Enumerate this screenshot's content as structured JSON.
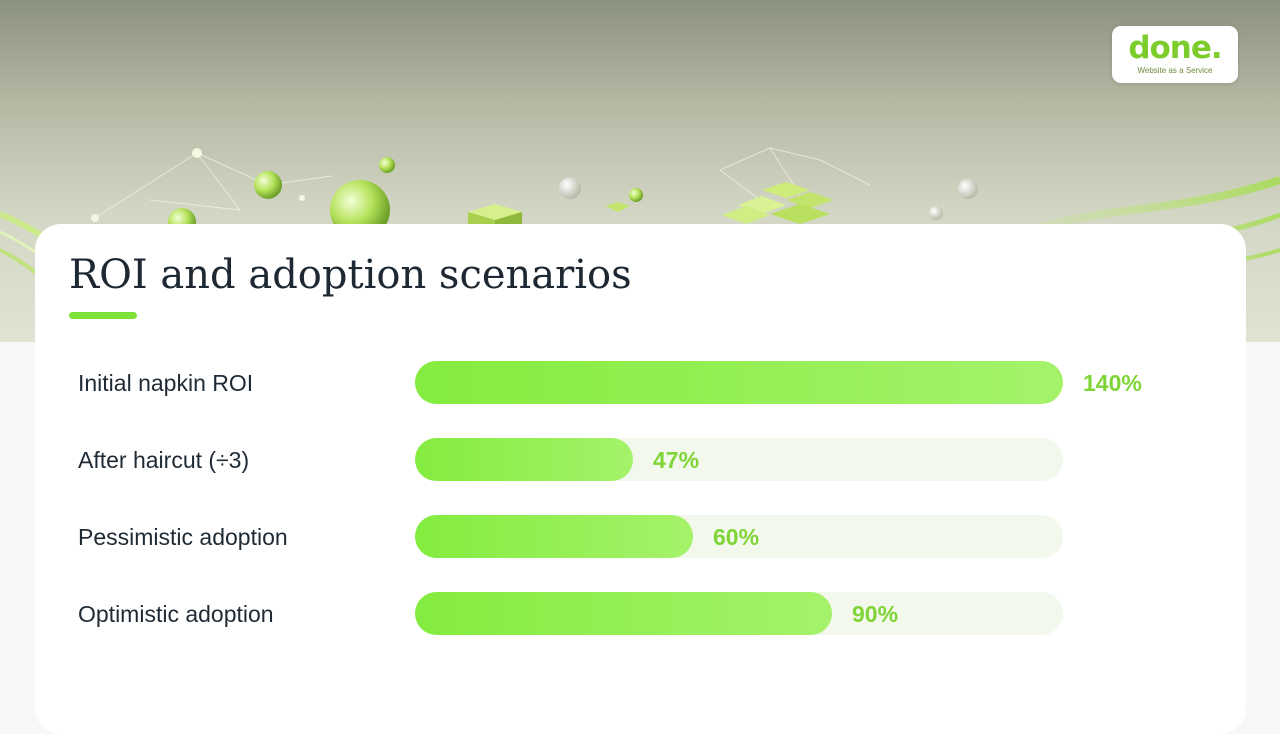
{
  "brand": {
    "logo_text": "done.",
    "tagline": "Website as a Service",
    "accent_color": "#7ccc2b"
  },
  "chart_data": {
    "type": "bar",
    "orientation": "horizontal",
    "title": "ROI and adoption scenarios",
    "categories": [
      "Initial napkin ROI",
      "After haircut (÷3)",
      "Pessimistic adoption",
      "Optimistic adoption"
    ],
    "values": [
      140,
      47,
      60,
      90
    ],
    "value_labels": [
      "140%",
      "47%",
      "60%",
      "90%"
    ],
    "unit": "%",
    "xlim": [
      0,
      140
    ],
    "grid": false,
    "bar_color": "#8eed4a",
    "track_color": "#f2f9ec",
    "label_color": "#7fd436"
  }
}
